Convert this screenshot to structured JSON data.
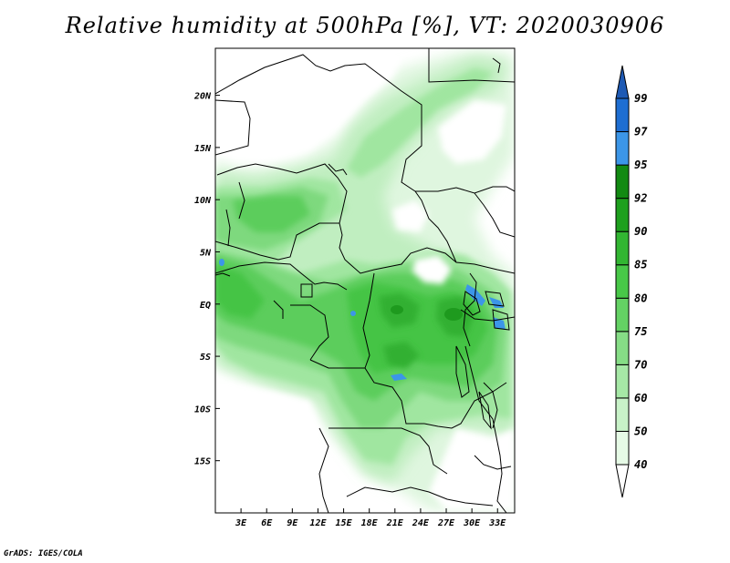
{
  "title": "Relative humidity at 500hPa [%], VT: 2020030906",
  "credit": "GrADS: IGES/COLA",
  "map": {
    "lon_range": [
      0,
      35
    ],
    "lat_range": [
      -20,
      24.5
    ],
    "x_ticks": [
      {
        "lon": 3,
        "label": "3E"
      },
      {
        "lon": 6,
        "label": "6E"
      },
      {
        "lon": 9,
        "label": "9E"
      },
      {
        "lon": 12,
        "label": "12E"
      },
      {
        "lon": 15,
        "label": "15E"
      },
      {
        "lon": 18,
        "label": "18E"
      },
      {
        "lon": 21,
        "label": "21E"
      },
      {
        "lon": 24,
        "label": "24E"
      },
      {
        "lon": 27,
        "label": "27E"
      },
      {
        "lon": 30,
        "label": "30E"
      },
      {
        "lon": 33,
        "label": "33E"
      }
    ],
    "y_ticks": [
      {
        "lat": 20,
        "label": "20N"
      },
      {
        "lat": 15,
        "label": "15N"
      },
      {
        "lat": 10,
        "label": "10N"
      },
      {
        "lat": 5,
        "label": "5N"
      },
      {
        "lat": 0,
        "label": "EQ"
      },
      {
        "lat": -5,
        "label": "5S"
      },
      {
        "lat": -10,
        "label": "10S"
      },
      {
        "lat": -15,
        "label": "15S"
      }
    ]
  },
  "legend": {
    "levels": [
      {
        "label": "40",
        "color": "#e6fae6"
      },
      {
        "label": "50",
        "color": "#c8f2c8"
      },
      {
        "label": "60",
        "color": "#a6e8a6"
      },
      {
        "label": "70",
        "color": "#86dd86"
      },
      {
        "label": "75",
        "color": "#64d264"
      },
      {
        "label": "80",
        "color": "#48c848"
      },
      {
        "label": "85",
        "color": "#32b632"
      },
      {
        "label": "90",
        "color": "#1ea01e"
      },
      {
        "label": "92",
        "color": "#128a12"
      },
      {
        "label": "95",
        "color": "#3c96e8"
      },
      {
        "label": "97",
        "color": "#1e6ed2"
      },
      {
        "label": "99",
        "color": "#1e5ab4"
      }
    ],
    "below_color": "#ffffff"
  }
}
